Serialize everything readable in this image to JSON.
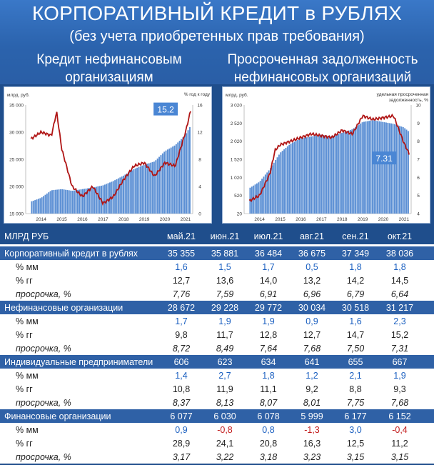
{
  "title": "КОРПОРАТИВНЫЙ КРЕДИТ в РУБЛЯХ",
  "subtitle": "(без учета приобретенных прав требования)",
  "chart_left_title": "Кредит нефинансовым организациям",
  "chart_right_title": "Просроченная задолженность нефинансовых организаций",
  "chart_data": [
    {
      "type": "bar",
      "ylabel": "млрд. руб.",
      "y2label": "% год к году",
      "ylim": [
        15000,
        35000
      ],
      "y2lim": [
        0,
        16
      ],
      "yticks": [
        "15 000",
        "20 000",
        "25 000",
        "30 000",
        "35 000"
      ],
      "y2ticks": [
        "0",
        "4",
        "8",
        "12",
        "16"
      ],
      "xticks": [
        "2014",
        "2015",
        "2016",
        "2017",
        "2018",
        "2019",
        "2020",
        "2021"
      ],
      "series": [
        {
          "kind": "bar",
          "x": [
            "2014-01",
            "2014-07",
            "2015-01",
            "2015-07",
            "2016-01",
            "2016-07",
            "2017-01",
            "2017-07",
            "2018-01",
            "2018-07",
            "2019-01",
            "2019-07",
            "2020-01",
            "2020-07",
            "2021-01",
            "2021-07",
            "2021-10"
          ],
          "values": [
            17200,
            17900,
            19300,
            19500,
            19200,
            19500,
            19800,
            20200,
            21000,
            22000,
            23200,
            24000,
            24600,
            26500,
            27600,
            29500,
            31217
          ]
        },
        {
          "kind": "line",
          "x": [
            "2014-01",
            "2014-07",
            "2015-01",
            "2015-04",
            "2015-07",
            "2016-01",
            "2016-07",
            "2017-01",
            "2017-07",
            "2018-01",
            "2018-07",
            "2019-01",
            "2019-07",
            "2020-01",
            "2020-07",
            "2021-01",
            "2021-07",
            "2021-10"
          ],
          "values": [
            11.0,
            12.0,
            11.5,
            15.0,
            9.5,
            4.0,
            2.5,
            4.0,
            1.5,
            2.5,
            5.0,
            7.0,
            7.5,
            5.5,
            7.5,
            7.0,
            12.0,
            15.2
          ]
        }
      ],
      "annotations": [
        "15.2"
      ]
    },
    {
      "type": "bar",
      "ylabel": "млрд. руб.",
      "y2label": "удельная просроченная задолженность, %",
      "ylim": [
        20,
        3020
      ],
      "y2lim": [
        4,
        10
      ],
      "yticks": [
        "20",
        "520",
        "1 020",
        "1 520",
        "2 020",
        "2 520",
        "3 020"
      ],
      "y2ticks": [
        "4",
        "5",
        "6",
        "7",
        "8",
        "9",
        "10"
      ],
      "xticks": [
        "2014",
        "2015",
        "2016",
        "2017",
        "2018",
        "2019",
        "2020",
        "2021"
      ],
      "series": [
        {
          "kind": "bar",
          "x": [
            "2014-01",
            "2014-07",
            "2015-01",
            "2015-07",
            "2016-01",
            "2016-07",
            "2017-01",
            "2017-07",
            "2018-01",
            "2018-07",
            "2019-01",
            "2019-07",
            "2020-01",
            "2020-07",
            "2021-01",
            "2021-07",
            "2021-10"
          ],
          "values": [
            720,
            900,
            1250,
            1700,
            1950,
            2100,
            2150,
            2200,
            2150,
            2250,
            2350,
            2550,
            2600,
            2550,
            2500,
            2400,
            2280
          ]
        },
        {
          "kind": "line",
          "x": [
            "2014-01",
            "2014-07",
            "2015-01",
            "2015-04",
            "2015-07",
            "2016-01",
            "2016-07",
            "2017-01",
            "2017-07",
            "2018-01",
            "2018-07",
            "2019-01",
            "2019-07",
            "2020-01",
            "2020-07",
            "2021-01",
            "2021-07",
            "2021-10"
          ],
          "values": [
            4.7,
            5.0,
            6.2,
            7.5,
            7.8,
            8.0,
            8.2,
            8.4,
            8.3,
            8.2,
            8.6,
            8.4,
            9.4,
            9.2,
            9.3,
            9.4,
            7.9,
            7.31
          ]
        }
      ],
      "annotations": [
        "7.31"
      ]
    }
  ],
  "table": {
    "head_label": "МЛРД РУБ",
    "months": [
      "май.21",
      "июн.21",
      "июл.21",
      "авг.21",
      "сен.21",
      "окт.21"
    ],
    "sections": [
      {
        "name": "Корпоративный кредит в рублях",
        "values": [
          "35 355",
          "35 881",
          "36 484",
          "36 675",
          "37 349",
          "38 036"
        ],
        "rows": [
          {
            "label": "% мм",
            "values": [
              "1,6",
              "1,5",
              "1,7",
              "0,5",
              "1,8",
              "1,8"
            ]
          },
          {
            "label": "% гг",
            "values": [
              "12,7",
              "13,6",
              "14,0",
              "13,2",
              "14,2",
              "14,5"
            ]
          },
          {
            "label": "просрочка, %",
            "values": [
              "7,76",
              "7,59",
              "6,91",
              "6,96",
              "6,79",
              "6,64"
            ]
          }
        ]
      },
      {
        "name": "Нефинансовые организации",
        "values": [
          "28 672",
          "29 228",
          "29 772",
          "30 034",
          "30 518",
          "31 217"
        ],
        "rows": [
          {
            "label": "% мм",
            "values": [
              "1,7",
              "1,9",
              "1,9",
              "0,9",
              "1,6",
              "2,3"
            ]
          },
          {
            "label": "% гг",
            "values": [
              "9,8",
              "11,7",
              "12,8",
              "12,7",
              "14,7",
              "15,2"
            ]
          },
          {
            "label": "просрочка, %",
            "values": [
              "8,72",
              "8,49",
              "7,64",
              "7,68",
              "7,50",
              "7,31"
            ]
          }
        ]
      },
      {
        "name": "Индивидуальные предприниматели",
        "values": [
          "606",
          "623",
          "634",
          "641",
          "655",
          "667"
        ],
        "rows": [
          {
            "label": "% мм",
            "values": [
              "1,4",
              "2,7",
              "1,8",
              "1,2",
              "2,1",
              "1,9"
            ]
          },
          {
            "label": "% гг",
            "values": [
              "10,8",
              "11,9",
              "11,1",
              "9,2",
              "8,8",
              "9,3"
            ]
          },
          {
            "label": "просрочка, %",
            "values": [
              "8,37",
              "8,13",
              "8,07",
              "8,01",
              "7,75",
              "7,68"
            ]
          }
        ]
      },
      {
        "name": "Финансовые организации",
        "values": [
          "6 077",
          "6 030",
          "6 078",
          "5 999",
          "6 177",
          "6 152"
        ],
        "rows": [
          {
            "label": "% мм",
            "values": [
              "0,9",
              "-0,8",
              "0,8",
              "-1,3",
              "3,0",
              "-0,4"
            ]
          },
          {
            "label": "% гг",
            "values": [
              "28,9",
              "24,1",
              "20,8",
              "16,3",
              "12,5",
              "11,2"
            ]
          },
          {
            "label": "просрочка, %",
            "values": [
              "3,17",
              "3,22",
              "3,18",
              "3,23",
              "3,15",
              "3,15"
            ]
          }
        ]
      }
    ]
  },
  "colors": {
    "bar": "#5b8fd4",
    "line": "#b01515",
    "badge": "#4a86d4",
    "negative": "#c21a1a",
    "positive": "#1a5fc0"
  }
}
